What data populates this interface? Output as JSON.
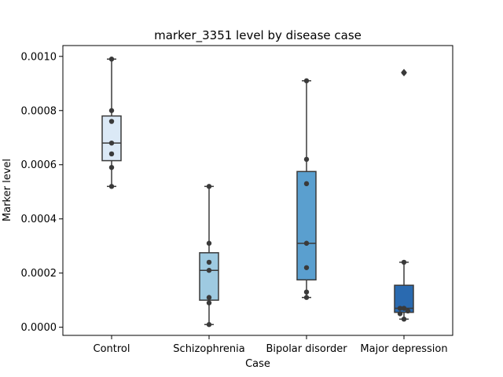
{
  "chart_data": {
    "type": "box",
    "title": "marker_3351 level by disease case",
    "xlabel": "Case",
    "ylabel": "Marker level",
    "categories": [
      "Control",
      "Schizophrenia",
      "Bipolar disorder",
      "Major depression"
    ],
    "ylim": [
      -3e-05,
      0.00104
    ],
    "yticks": [
      0.0,
      0.0002,
      0.0004,
      0.0006,
      0.0008,
      0.001
    ],
    "ytick_labels": [
      "0.0000",
      "0.0002",
      "0.0004",
      "0.0006",
      "0.0008",
      "0.0010"
    ],
    "boxes": [
      {
        "category": "Control",
        "color": "#dbe9f6",
        "q1": 0.000615,
        "median": 0.00068,
        "q3": 0.00078,
        "whisker_low": 0.00052,
        "whisker_high": 0.00099,
        "outliers": []
      },
      {
        "category": "Schizophrenia",
        "color": "#9ecae1",
        "q1": 0.0001,
        "median": 0.00021,
        "q3": 0.000275,
        "whisker_low": 1e-05,
        "whisker_high": 0.00052,
        "outliers": []
      },
      {
        "category": "Bipolar disorder",
        "color": "#5a9fcf",
        "q1": 0.000175,
        "median": 0.00031,
        "q3": 0.000575,
        "whisker_low": 0.00011,
        "whisker_high": 0.00091,
        "outliers": []
      },
      {
        "category": "Major depression",
        "color": "#2a6ab0",
        "q1": 5.5e-05,
        "median": 7e-05,
        "q3": 0.000155,
        "whisker_low": 3e-05,
        "whisker_high": 0.00024,
        "outliers": [
          0.00094
        ]
      }
    ],
    "points": [
      [
        0.00099,
        0.0008,
        0.00076,
        0.00068,
        0.00064,
        0.00059,
        0.00052
      ],
      [
        0.00052,
        0.00031,
        0.00024,
        0.00021,
        0.00011,
        9e-05,
        1e-05
      ],
      [
        0.00091,
        0.00062,
        0.00053,
        0.00031,
        0.00022,
        0.00013,
        0.00011
      ],
      [
        0.00094,
        0.00024,
        7e-05,
        7e-05,
        6e-05,
        5e-05,
        3e-05
      ]
    ]
  }
}
